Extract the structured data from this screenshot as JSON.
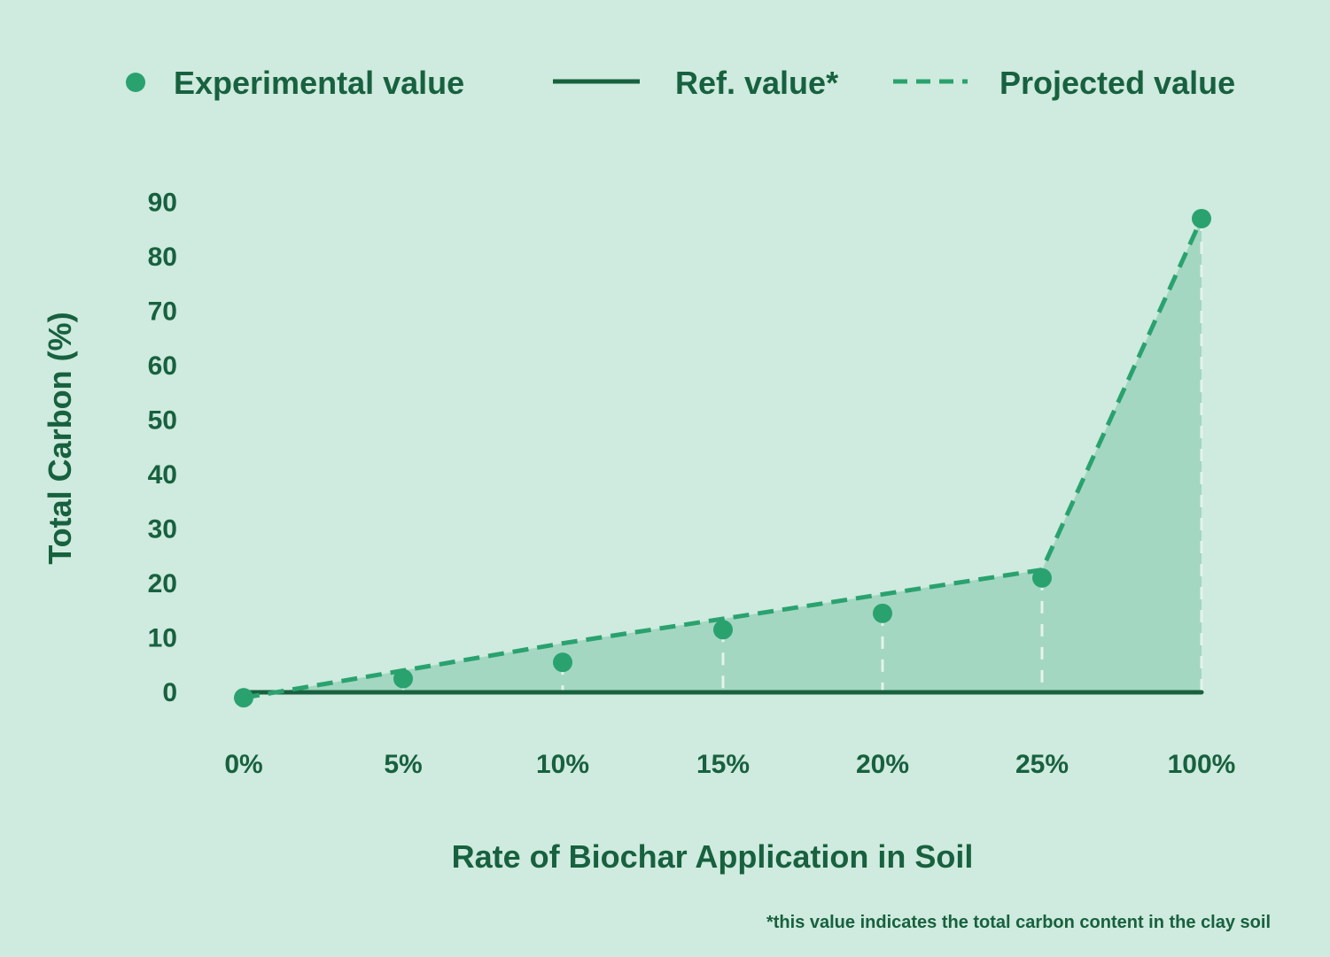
{
  "colors": {
    "background": "#cfeade",
    "text": "#17613f",
    "ref_line": "#17613f",
    "point": "#2aa270",
    "projected": "#2aa270",
    "area": "#a3d7c1",
    "drop_line": "#e4f3ec"
  },
  "legend": {
    "experimental": "Experimental value",
    "reference": "Ref. value*",
    "projected": "Projected value"
  },
  "footnote": "*this value indicates the total carbon content in the clay soil",
  "chart_data": {
    "type": "line",
    "title": "",
    "xlabel": "Rate of Biochar Application in Soil",
    "ylabel": "Total Carbon (%)",
    "ylim": [
      0,
      90
    ],
    "yticks": [
      "90",
      "80",
      "70",
      "60",
      "50",
      "40",
      "30",
      "20",
      "10",
      "0"
    ],
    "categories": [
      "0%",
      "5%",
      "10%",
      "15%",
      "20%",
      "25%",
      "100%"
    ],
    "legend_position": "top",
    "grid": false,
    "series": [
      {
        "name": "Experimental value",
        "style": "points",
        "values": [
          -1,
          2.5,
          5.5,
          11.5,
          14.5,
          21,
          87
        ]
      },
      {
        "name": "Projected value",
        "style": "dashed-line-area",
        "values": [
          -1,
          4,
          9,
          13.5,
          18,
          22.5,
          87
        ]
      },
      {
        "name": "Ref. value*",
        "style": "solid-line",
        "values": [
          0,
          0,
          0,
          0,
          0,
          0,
          0
        ]
      }
    ]
  }
}
